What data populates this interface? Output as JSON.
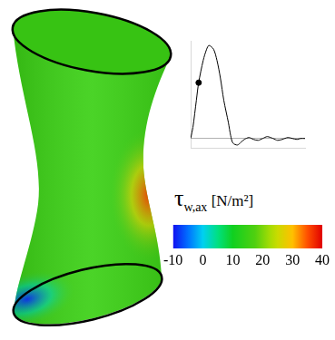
{
  "chart_data": {
    "type": "line",
    "x": [
      0,
      0.02,
      0.05,
      0.07,
      0.11,
      0.14,
      0.16,
      0.2,
      0.23,
      0.26,
      0.29,
      0.33,
      0.35,
      0.37,
      0.41,
      0.44,
      0.47,
      0.51,
      0.55,
      0.59,
      0.63,
      0.67,
      0.72,
      0.76,
      0.8,
      0.85,
      0.89,
      0.93,
      0.96,
      1.0
    ],
    "values": [
      0,
      0.12,
      0.41,
      0.6,
      0.84,
      0.96,
      1.0,
      0.96,
      0.84,
      0.65,
      0.41,
      0.17,
      0.03,
      -0.05,
      -0.07,
      -0.04,
      -0.01,
      0.01,
      -0.01,
      -0.02,
      0,
      0.02,
      0,
      -0.02,
      -0.01,
      0.01,
      0,
      -0.01,
      0,
      0
    ],
    "color": "#000000",
    "marker_point": {
      "x": 0.07,
      "y": 0.6
    },
    "xlim": [
      0,
      1
    ],
    "xticks": [],
    "ylim": [
      -0.1,
      1.05
    ],
    "yticks": [
      0
    ],
    "grid": true,
    "tick_labels": false
  },
  "colorbar": {
    "label": {
      "symbol": "τ",
      "subscript": "w,ax",
      "unit": "[N/m²]"
    },
    "range": [
      -10,
      40
    ],
    "ticks": [
      -10,
      0,
      10,
      20,
      30,
      40
    ]
  },
  "wall_shear": {
    "typical": 15,
    "max": 36,
    "min": -8
  }
}
